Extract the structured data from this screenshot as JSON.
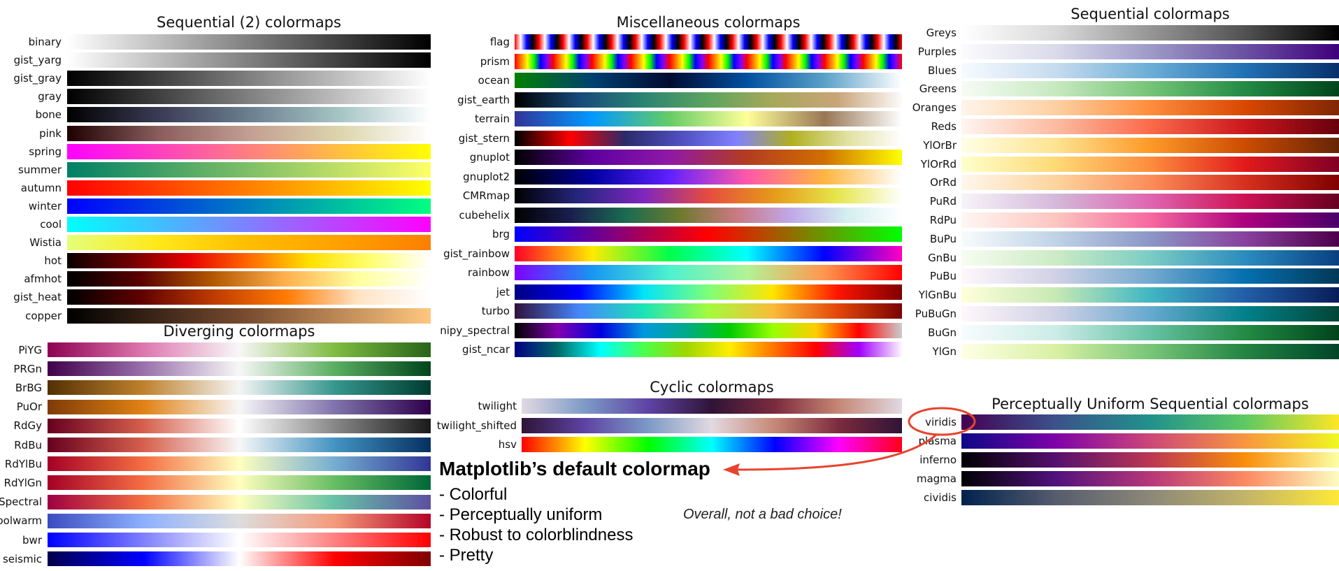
{
  "panels": {
    "seq2": {
      "title": "Sequential (2) colormaps",
      "rows": [
        {
          "name": "binary",
          "colors": [
            "#ffffff",
            "#000000"
          ]
        },
        {
          "name": "gist_yarg",
          "colors": [
            "#ffffff",
            "#000000"
          ]
        },
        {
          "name": "gist_gray",
          "colors": [
            "#000000",
            "#ffffff"
          ]
        },
        {
          "name": "gray",
          "colors": [
            "#000000",
            "#ffffff"
          ]
        },
        {
          "name": "bone",
          "colors": [
            "#000000",
            "#3a3a54",
            "#6b7f8f",
            "#a6c5c5",
            "#ffffff"
          ]
        },
        {
          "name": "pink",
          "colors": [
            "#1e0000",
            "#8a5c5c",
            "#c39e92",
            "#dcd5ab",
            "#ffffff"
          ]
        },
        {
          "name": "spring",
          "colors": [
            "#ff00ff",
            "#ffff00"
          ]
        },
        {
          "name": "summer",
          "colors": [
            "#008066",
            "#ffff66"
          ]
        },
        {
          "name": "autumn",
          "colors": [
            "#ff0000",
            "#ffff00"
          ]
        },
        {
          "name": "winter",
          "colors": [
            "#0000ff",
            "#00ff80"
          ]
        },
        {
          "name": "cool",
          "colors": [
            "#00ffff",
            "#ff00ff"
          ]
        },
        {
          "name": "Wistia",
          "colors": [
            "#e4ff7a",
            "#ffe81a",
            "#ffbd00",
            "#ffa000",
            "#fc7f00"
          ]
        },
        {
          "name": "hot",
          "colors": [
            "#0b0000",
            "#6b0000",
            "#e60000",
            "#ff6a00",
            "#ffe100",
            "#ffff70",
            "#ffffff"
          ]
        },
        {
          "name": "afmhot",
          "colors": [
            "#000000",
            "#5a0000",
            "#b35700",
            "#ffb14d",
            "#ffff9e",
            "#ffffff"
          ]
        },
        {
          "name": "gist_heat",
          "colors": [
            "#000000",
            "#5e0000",
            "#bd3a00",
            "#ff7a00",
            "#ffe3c4",
            "#ffffff"
          ]
        },
        {
          "name": "copper",
          "colors": [
            "#000000",
            "#7a4d30",
            "#ffc77f"
          ]
        }
      ]
    },
    "misc": {
      "title": "Miscellaneous colormaps",
      "rows": [
        {
          "name": "flag",
          "kind": "flag"
        },
        {
          "name": "prism",
          "kind": "prism"
        },
        {
          "name": "ocean",
          "colors": [
            "#008000",
            "#004070",
            "#000a30",
            "#0050a0",
            "#5aa0c8",
            "#ffffff"
          ]
        },
        {
          "name": "gist_earth",
          "colors": [
            "#000000",
            "#164a7a",
            "#2b8473",
            "#5da45e",
            "#a7a85a",
            "#c9a47a",
            "#fdfbfb"
          ]
        },
        {
          "name": "terrain",
          "colors": [
            "#333399",
            "#0099ff",
            "#66cc66",
            "#ffff99",
            "#997755",
            "#ffffff"
          ]
        },
        {
          "name": "gist_stern",
          "colors": [
            "#000000",
            "#ff0000",
            "#2a2a6a",
            "#4f4fc0",
            "#8080ff",
            "#b0b020",
            "#e0e0a0",
            "#ffffff"
          ]
        },
        {
          "name": "gnuplot",
          "colors": [
            "#000000",
            "#5e00a0",
            "#8f19a6",
            "#b43c20",
            "#d07000",
            "#ffff00"
          ]
        },
        {
          "name": "gnuplot2",
          "colors": [
            "#000000",
            "#0000a0",
            "#6020ff",
            "#ff58a8",
            "#ffb640",
            "#ffffff"
          ]
        },
        {
          "name": "CMRmap",
          "colors": [
            "#000000",
            "#26267f",
            "#7f26bf",
            "#e64c3f",
            "#e6991a",
            "#e6e64c",
            "#ffffff"
          ]
        },
        {
          "name": "cubehelix",
          "colors": [
            "#000000",
            "#1a1e4d",
            "#1a6b51",
            "#6e7a2e",
            "#c97982",
            "#c0a9e8",
            "#d4eef0",
            "#ffffff"
          ]
        },
        {
          "name": "brg",
          "colors": [
            "#0000ff",
            "#ff0000",
            "#00ff00"
          ]
        },
        {
          "name": "gist_rainbow",
          "colors": [
            "#ff0029",
            "#ffeb00",
            "#00ff4a",
            "#00ffff",
            "#0000ff",
            "#ff00bf"
          ]
        },
        {
          "name": "rainbow",
          "colors": [
            "#8000ff",
            "#1996f3",
            "#4cf2ce",
            "#b2f396",
            "#ff964f",
            "#ff0000"
          ]
        },
        {
          "name": "jet",
          "colors": [
            "#000080",
            "#0000ff",
            "#00e4f8",
            "#7dff7a",
            "#ffe500",
            "#ff1400",
            "#800000"
          ]
        },
        {
          "name": "turbo",
          "colors": [
            "#30123b",
            "#4686fb",
            "#1ae4b6",
            "#a2fc3c",
            "#fabb39",
            "#e4460a",
            "#7a0403"
          ]
        },
        {
          "name": "nipy_spectral",
          "colors": [
            "#000000",
            "#8200b0",
            "#0000dd",
            "#0099dd",
            "#00aa88",
            "#00cc00",
            "#99ff00",
            "#ffcc00",
            "#ff0000",
            "#cccccc"
          ]
        },
        {
          "name": "gist_ncar",
          "colors": [
            "#000080",
            "#006a6a",
            "#00ffff",
            "#4bff4b",
            "#a0d700",
            "#ffee00",
            "#ff7600",
            "#ff0000",
            "#a100ff",
            "#fef8fe"
          ]
        }
      ]
    },
    "seq": {
      "title": "Sequential colormaps",
      "rows": [
        {
          "name": "Greys",
          "colors": [
            "#ffffff",
            "#d9d9d9",
            "#969696",
            "#525252",
            "#000000"
          ]
        },
        {
          "name": "Purples",
          "colors": [
            "#fcfbfd",
            "#dadaeb",
            "#9e9ac8",
            "#6a51a3",
            "#3f007d"
          ]
        },
        {
          "name": "Blues",
          "colors": [
            "#f7fbff",
            "#c6dbef",
            "#6baed6",
            "#2171b5",
            "#08306b"
          ]
        },
        {
          "name": "Greens",
          "colors": [
            "#f7fcf5",
            "#c7e9c0",
            "#74c476",
            "#238b45",
            "#00441b"
          ]
        },
        {
          "name": "Oranges",
          "colors": [
            "#fff5eb",
            "#fdd0a2",
            "#fd8d3c",
            "#d94801",
            "#7f2704"
          ]
        },
        {
          "name": "Reds",
          "colors": [
            "#fff5f0",
            "#fcbba1",
            "#fb6a4a",
            "#cb181d",
            "#67000d"
          ]
        },
        {
          "name": "YlOrBr",
          "colors": [
            "#ffffe5",
            "#fee391",
            "#fe9929",
            "#cc4c02",
            "#662506"
          ]
        },
        {
          "name": "YlOrRd",
          "colors": [
            "#ffffcc",
            "#fed976",
            "#fd8d3c",
            "#e31a1c",
            "#800026"
          ]
        },
        {
          "name": "OrRd",
          "colors": [
            "#fff7ec",
            "#fdd49e",
            "#fc8d59",
            "#d7301f",
            "#7f0000"
          ]
        },
        {
          "name": "PuRd",
          "colors": [
            "#f7f4f9",
            "#d4b9da",
            "#df65b0",
            "#ce1256",
            "#67001f"
          ]
        },
        {
          "name": "RdPu",
          "colors": [
            "#fff7f3",
            "#fcc5c0",
            "#f768a1",
            "#ae017e",
            "#49006a"
          ]
        },
        {
          "name": "BuPu",
          "colors": [
            "#f7fcfd",
            "#bfd3e6",
            "#8c96c6",
            "#88419d",
            "#4d004b"
          ]
        },
        {
          "name": "GnBu",
          "colors": [
            "#f7fcf0",
            "#ccebc5",
            "#7bccc4",
            "#2b8cbe",
            "#084081"
          ]
        },
        {
          "name": "PuBu",
          "colors": [
            "#fff7fb",
            "#d0d1e6",
            "#74a9cf",
            "#0570b0",
            "#023858"
          ]
        },
        {
          "name": "YlGnBu",
          "colors": [
            "#ffffd9",
            "#c7e9b4",
            "#41b6c4",
            "#225ea8",
            "#081d58"
          ]
        },
        {
          "name": "PuBuGn",
          "colors": [
            "#fff7fb",
            "#d0d1e6",
            "#67a9cf",
            "#02818a",
            "#014636"
          ]
        },
        {
          "name": "BuGn",
          "colors": [
            "#f7fcfd",
            "#ccece6",
            "#66c2a4",
            "#238b45",
            "#00441b"
          ]
        },
        {
          "name": "YlGn",
          "colors": [
            "#ffffe5",
            "#d9f0a3",
            "#78c679",
            "#238443",
            "#004529"
          ]
        }
      ]
    },
    "div": {
      "title": "Diverging colormaps",
      "rows": [
        {
          "name": "PiYG",
          "colors": [
            "#8e0152",
            "#de77ae",
            "#f7f7f7",
            "#7fbc41",
            "#276419"
          ]
        },
        {
          "name": "PRGn",
          "colors": [
            "#40004b",
            "#9970ab",
            "#f7f7f7",
            "#5aae61",
            "#00441b"
          ]
        },
        {
          "name": "BrBG",
          "colors": [
            "#543005",
            "#bf812d",
            "#f5f5f5",
            "#35978f",
            "#003c30"
          ]
        },
        {
          "name": "PuOr",
          "colors": [
            "#7f3b08",
            "#e08214",
            "#f7f7f7",
            "#8073ac",
            "#2d004b"
          ]
        },
        {
          "name": "RdGy",
          "colors": [
            "#67001f",
            "#d6604d",
            "#ffffff",
            "#878787",
            "#1a1a1a"
          ]
        },
        {
          "name": "RdBu",
          "colors": [
            "#67001f",
            "#d6604d",
            "#f7f7f7",
            "#4393c3",
            "#053061"
          ]
        },
        {
          "name": "RdYlBu",
          "colors": [
            "#a50026",
            "#f46d43",
            "#ffffbf",
            "#74add1",
            "#313695"
          ]
        },
        {
          "name": "RdYlGn",
          "colors": [
            "#a50026",
            "#f46d43",
            "#ffffbf",
            "#66bd63",
            "#006837"
          ]
        },
        {
          "name": "Spectral",
          "colors": [
            "#9e0142",
            "#f46d43",
            "#ffffbf",
            "#66c2a5",
            "#5e4fa2"
          ]
        },
        {
          "name": "coolwarm",
          "colors": [
            "#3b4cc0",
            "#8db0fe",
            "#dddddd",
            "#f49a7b",
            "#b40426"
          ]
        },
        {
          "name": "bwr",
          "colors": [
            "#0000ff",
            "#ffffff",
            "#ff0000"
          ]
        },
        {
          "name": "seismic",
          "colors": [
            "#00004c",
            "#0000ff",
            "#ffffff",
            "#ff0000",
            "#7f0000"
          ]
        }
      ]
    },
    "cyc": {
      "title": "Cyclic colormaps",
      "rows": [
        {
          "name": "twilight",
          "colors": [
            "#e2d9e2",
            "#7c9ac6",
            "#5e43a4",
            "#2f1436",
            "#7c2b3e",
            "#c58774",
            "#e2d9e2"
          ]
        },
        {
          "name": "twilight_shifted",
          "colors": [
            "#2f1436",
            "#5e43a4",
            "#7c9ac6",
            "#e2d9e2",
            "#c58774",
            "#7c2b3e",
            "#2f1436"
          ]
        },
        {
          "name": "hsv",
          "colors": [
            "#ff0000",
            "#ffff00",
            "#00ff00",
            "#00ffff",
            "#0000ff",
            "#ff00ff",
            "#ff0018"
          ]
        }
      ]
    },
    "pus": {
      "title": "Perceptually Uniform Sequential colormaps",
      "rows": [
        {
          "name": "viridis",
          "colors": [
            "#440154",
            "#3b528b",
            "#21918c",
            "#5ec962",
            "#fde725"
          ]
        },
        {
          "name": "plasma",
          "colors": [
            "#0d0887",
            "#7e03a8",
            "#cc4778",
            "#f89540",
            "#f0f921"
          ]
        },
        {
          "name": "inferno",
          "colors": [
            "#000004",
            "#56106e",
            "#bb3754",
            "#f98e09",
            "#fcffa4"
          ]
        },
        {
          "name": "magma",
          "colors": [
            "#000004",
            "#51127c",
            "#b73779",
            "#fc8961",
            "#fcfdbf"
          ]
        },
        {
          "name": "cividis",
          "colors": [
            "#00224e",
            "#575c6d",
            "#8b8878",
            "#c3b369",
            "#fee838"
          ]
        }
      ]
    }
  },
  "annotation": {
    "title": "Matplotlib’s default colormap",
    "bullets": [
      "- Colorful",
      "- Perceptually uniform",
      "- Robust to colorblindness",
      "- Pretty"
    ],
    "verdict": "Overall, not a bad choice!",
    "accent_color": "#e8442d",
    "highlighted": "viridis"
  }
}
